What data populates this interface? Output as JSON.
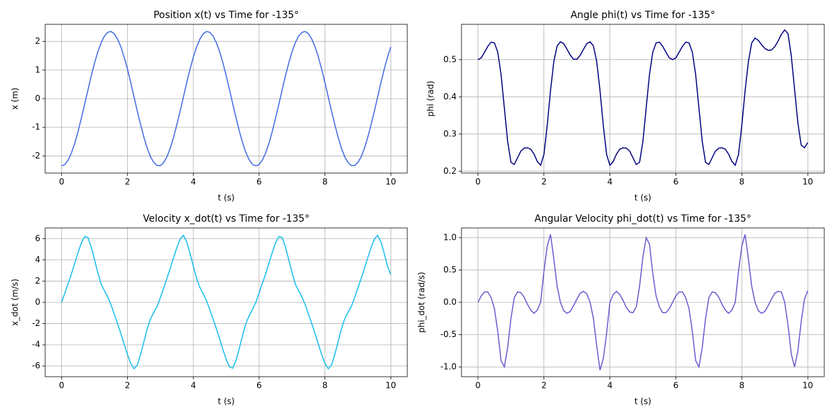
{
  "chart_data": [
    {
      "type": "line",
      "title": "Position x(t) vs Time for -135°",
      "xlabel": "t (s)",
      "ylabel": "x (m)",
      "color": "#4169e1",
      "x": [
        0,
        0.1,
        0.2,
        0.3,
        0.4,
        0.5,
        0.6,
        0.7,
        0.8,
        0.9,
        1,
        1.1,
        1.2,
        1.3,
        1.4,
        1.5,
        1.6,
        1.7,
        1.8,
        1.9,
        2,
        2.1,
        2.2,
        2.3,
        2.4,
        2.5,
        2.6,
        2.7,
        2.8,
        2.9,
        3,
        3.1,
        3.2,
        3.3,
        3.4,
        3.5,
        3.6,
        3.7,
        3.8,
        3.9,
        4,
        4.1,
        4.2,
        4.3,
        4.4,
        4.5,
        4.6,
        4.7,
        4.8,
        4.9,
        5,
        5.1,
        5.2,
        5.3,
        5.4,
        5.5,
        5.6,
        5.7,
        5.8,
        5.9,
        6,
        6.1,
        6.2,
        6.3,
        6.4,
        6.5,
        6.6,
        6.7,
        6.8,
        6.9,
        7,
        7.1,
        7.2,
        7.3,
        7.4,
        7.5,
        7.6,
        7.7,
        7.8,
        7.9,
        8,
        8.1,
        8.2,
        8.3,
        8.4,
        8.5,
        8.6,
        8.7,
        8.8,
        8.9,
        9,
        9.1,
        9.2,
        9.3,
        9.4,
        9.5,
        9.6,
        9.7,
        9.8,
        9.9,
        10
      ],
      "values": [
        -2.35,
        -2.3,
        -2.14,
        -1.89,
        -1.55,
        -1.14,
        -0.68,
        -0.19,
        0.31,
        0.8,
        1.25,
        1.64,
        1.96,
        2.19,
        2.32,
        2.35,
        2.27,
        2.08,
        1.81,
        1.45,
        1.03,
        0.56,
        0.06,
        -0.44,
        -0.91,
        -1.35,
        -1.73,
        -2.03,
        -2.23,
        -2.34,
        -2.34,
        -2.23,
        -2.03,
        -1.73,
        -1.35,
        -0.91,
        -0.44,
        0.06,
        0.56,
        1.03,
        1.45,
        1.81,
        2.08,
        2.27,
        2.35,
        2.32,
        2.19,
        1.96,
        1.64,
        1.25,
        0.8,
        0.31,
        -0.19,
        -0.68,
        -1.14,
        -1.55,
        -1.89,
        -2.14,
        -2.3,
        -2.35,
        -2.3,
        -2.14,
        -1.89,
        -1.55,
        -1.14,
        -0.68,
        -0.19,
        0.31,
        0.8,
        1.25,
        1.64,
        1.96,
        2.19,
        2.32,
        2.35,
        2.27,
        2.08,
        1.81,
        1.45,
        1.03,
        0.56,
        0.06,
        -0.44,
        -0.91,
        -1.35,
        -1.73,
        -2.03,
        -2.23,
        -2.34,
        -2.34,
        -2.23,
        -2.03,
        -1.73,
        -1.35,
        -0.91,
        -0.44,
        0.06,
        0.56,
        1.03,
        1.45,
        1.81
      ],
      "xlim": [
        -0.5,
        10.5
      ],
      "xticks": [
        0,
        2,
        4,
        6,
        8,
        10
      ],
      "ylim": [
        -2.6,
        2.6
      ],
      "yticks": [
        -2,
        -1,
        0,
        1,
        2
      ],
      "grid": true
    },
    {
      "type": "line",
      "title": "Angle phi(t) vs Time for -135°",
      "xlabel": "t (s)",
      "ylabel": "phi (rad)",
      "color": "#000080",
      "x": [
        0,
        0.1,
        0.2,
        0.3,
        0.4,
        0.5,
        0.6,
        0.7,
        0.8,
        0.9,
        1,
        1.1,
        1.2,
        1.3,
        1.4,
        1.5,
        1.6,
        1.7,
        1.8,
        1.9,
        2,
        2.1,
        2.2,
        2.3,
        2.4,
        2.5,
        2.6,
        2.7,
        2.8,
        2.9,
        3,
        3.1,
        3.2,
        3.3,
        3.4,
        3.5,
        3.6,
        3.7,
        3.8,
        3.9,
        4,
        4.1,
        4.2,
        4.3,
        4.4,
        4.5,
        4.6,
        4.7,
        4.8,
        4.9,
        5,
        5.1,
        5.2,
        5.3,
        5.4,
        5.5,
        5.6,
        5.7,
        5.8,
        5.9,
        6,
        6.1,
        6.2,
        6.3,
        6.4,
        6.5,
        6.6,
        6.7,
        6.8,
        6.9,
        7,
        7.1,
        7.2,
        7.3,
        7.4,
        7.5,
        7.6,
        7.7,
        7.8,
        7.9,
        8,
        8.1,
        8.2,
        8.3,
        8.4,
        8.5,
        8.6,
        8.7,
        8.8,
        8.9,
        9,
        9.1,
        9.2,
        9.3,
        9.4,
        9.5,
        9.6,
        9.7,
        9.8,
        9.9,
        10
      ],
      "values": [
        0.5,
        0.505,
        0.52,
        0.536,
        0.547,
        0.545,
        0.52,
        0.46,
        0.37,
        0.28,
        0.224,
        0.218,
        0.236,
        0.254,
        0.262,
        0.263,
        0.259,
        0.246,
        0.226,
        0.216,
        0.245,
        0.323,
        0.417,
        0.495,
        0.537,
        0.548,
        0.543,
        0.528,
        0.512,
        0.501,
        0.501,
        0.512,
        0.528,
        0.543,
        0.548,
        0.537,
        0.495,
        0.417,
        0.323,
        0.245,
        0.216,
        0.226,
        0.246,
        0.259,
        0.263,
        0.262,
        0.254,
        0.236,
        0.218,
        0.224,
        0.28,
        0.37,
        0.46,
        0.52,
        0.545,
        0.547,
        0.536,
        0.52,
        0.505,
        0.5,
        0.505,
        0.52,
        0.536,
        0.547,
        0.545,
        0.52,
        0.46,
        0.37,
        0.28,
        0.224,
        0.218,
        0.236,
        0.254,
        0.262,
        0.263,
        0.259,
        0.246,
        0.226,
        0.216,
        0.245,
        0.323,
        0.417,
        0.495,
        0.545,
        0.558,
        0.552,
        0.54,
        0.53,
        0.525,
        0.526,
        0.535,
        0.55,
        0.568,
        0.58,
        0.57,
        0.51,
        0.42,
        0.33,
        0.27,
        0.263,
        0.277
      ],
      "xlim": [
        -0.5,
        10.5
      ],
      "xticks": [
        0,
        2,
        4,
        6,
        8,
        10
      ],
      "ylim": [
        0.195,
        0.595
      ],
      "yticks": [
        0.2,
        0.3,
        0.4,
        0.5
      ],
      "grid": true
    },
    {
      "type": "line",
      "title": "Velocity x_dot(t) vs Time for -135°",
      "xlabel": "t (s)",
      "ylabel": "x_dot (m/s)",
      "color": "#14bdec",
      "x": [
        0,
        0.1,
        0.2,
        0.3,
        0.4,
        0.5,
        0.6,
        0.7,
        0.8,
        0.9,
        1,
        1.1,
        1.2,
        1.3,
        1.4,
        1.5,
        1.6,
        1.7,
        1.8,
        1.9,
        2,
        2.1,
        2.2,
        2.3,
        2.4,
        2.5,
        2.6,
        2.7,
        2.8,
        2.9,
        3,
        3.1,
        3.2,
        3.3,
        3.4,
        3.5,
        3.6,
        3.7,
        3.8,
        3.9,
        4,
        4.1,
        4.2,
        4.3,
        4.4,
        4.5,
        4.6,
        4.7,
        4.8,
        4.9,
        5,
        5.1,
        5.2,
        5.3,
        5.4,
        5.5,
        5.6,
        5.7,
        5.8,
        5.9,
        6,
        6.1,
        6.2,
        6.3,
        6.4,
        6.5,
        6.6,
        6.7,
        6.8,
        6.9,
        7,
        7.1,
        7.2,
        7.3,
        7.4,
        7.5,
        7.6,
        7.7,
        7.8,
        7.9,
        8,
        8.1,
        8.2,
        8.3,
        8.4,
        8.5,
        8.6,
        8.7,
        8.8,
        8.9,
        9,
        9.1,
        9.2,
        9.3,
        9.4,
        9.5,
        9.6,
        9.7,
        9.8,
        9.9,
        10
      ],
      "values": [
        0,
        0.9,
        1.8,
        2.7,
        3.7,
        4.7,
        5.6,
        6.2,
        6.1,
        5.2,
        4,
        2.8,
        1.7,
        1.1,
        0.5,
        -0.22,
        -1.12,
        -2.02,
        -2.95,
        -3.95,
        -4.92,
        -5.77,
        -6.25,
        -5.9,
        -4.9,
        -3.7,
        -2.5,
        -1.55,
        -0.95,
        -0.4,
        0.45,
        1.35,
        2.25,
        3.2,
        4.2,
        5.15,
        5.95,
        6.3,
        5.7,
        4.6,
        3.4,
        2.25,
        1.4,
        0.8,
        0.17,
        -0.68,
        -1.57,
        -2.47,
        -3.45,
        -4.45,
        -5.37,
        -6.07,
        -6.2,
        -5.45,
        -4.3,
        -3.1,
        -1.97,
        -1.25,
        -0.65,
        0,
        0.9,
        1.8,
        2.7,
        3.7,
        4.7,
        5.6,
        6.2,
        6.1,
        5.2,
        4,
        2.8,
        1.7,
        1.1,
        0.5,
        -0.22,
        -1.12,
        -2.02,
        -2.95,
        -3.95,
        -4.92,
        -5.77,
        -6.25,
        -5.9,
        -4.9,
        -3.7,
        -2.5,
        -1.55,
        -0.95,
        -0.4,
        0.45,
        1.35,
        2.25,
        3.2,
        4.2,
        5.15,
        5.95,
        6.3,
        5.7,
        4.6,
        3.4,
        2.6
      ],
      "xlim": [
        -0.5,
        10.5
      ],
      "xticks": [
        0,
        2,
        4,
        6,
        8,
        10
      ],
      "ylim": [
        -7,
        7
      ],
      "yticks": [
        -6,
        -4,
        -2,
        0,
        2,
        4,
        6
      ],
      "grid": true
    },
    {
      "type": "line",
      "title": "Angular Velocity phi_dot(t) vs Time for -135°",
      "xlabel": "t (s)",
      "ylabel": "phi_dot (rad/s)",
      "color": "#6a5acd",
      "x": [
        0,
        0.1,
        0.2,
        0.3,
        0.4,
        0.5,
        0.6,
        0.7,
        0.8,
        0.9,
        1,
        1.1,
        1.2,
        1.3,
        1.4,
        1.5,
        1.6,
        1.7,
        1.8,
        1.9,
        2,
        2.1,
        2.2,
        2.3,
        2.4,
        2.5,
        2.6,
        2.7,
        2.8,
        2.9,
        3,
        3.1,
        3.2,
        3.3,
        3.4,
        3.5,
        3.6,
        3.7,
        3.8,
        3.9,
        4,
        4.1,
        4.2,
        4.3,
        4.4,
        4.5,
        4.6,
        4.7,
        4.8,
        4.9,
        5,
        5.1,
        5.2,
        5.3,
        5.4,
        5.5,
        5.6,
        5.7,
        5.8,
        5.9,
        6,
        6.1,
        6.2,
        6.3,
        6.4,
        6.5,
        6.6,
        6.7,
        6.8,
        6.9,
        7,
        7.1,
        7.2,
        7.3,
        7.4,
        7.5,
        7.6,
        7.7,
        7.8,
        7.9,
        8,
        8.1,
        8.2,
        8.3,
        8.4,
        8.5,
        8.6,
        8.7,
        8.8,
        8.9,
        9,
        9.1,
        9.2,
        9.3,
        9.4,
        9.5,
        9.6,
        9.7,
        9.8,
        9.9,
        10
      ],
      "values": [
        0,
        0.1,
        0.16,
        0.16,
        0.07,
        -0.1,
        -0.45,
        -0.9,
        -1,
        -0.7,
        -0.25,
        0.07,
        0.16,
        0.15,
        0.08,
        -0.03,
        -0.12,
        -0.17,
        -0.12,
        0,
        0.48,
        0.87,
        1.05,
        0.67,
        0.25,
        0,
        -0.13,
        -0.17,
        -0.14,
        -0.05,
        0.05,
        0.14,
        0.17,
        0.13,
        0,
        -0.25,
        -0.67,
        -1.05,
        -0.87,
        -0.48,
        0,
        0.12,
        0.17,
        0.12,
        0.03,
        -0.08,
        -0.15,
        -0.16,
        -0.07,
        0.25,
        0.7,
        1,
        0.9,
        0.45,
        0.1,
        -0.07,
        -0.16,
        -0.16,
        -0.1,
        0,
        0.1,
        0.16,
        0.16,
        0.07,
        -0.1,
        -0.45,
        -0.9,
        -1,
        -0.7,
        -0.25,
        0.07,
        0.16,
        0.15,
        0.08,
        -0.03,
        -0.12,
        -0.17,
        -0.12,
        0,
        0.48,
        0.87,
        1.05,
        0.67,
        0.25,
        0,
        -0.13,
        -0.17,
        -0.14,
        -0.05,
        0.05,
        0.14,
        0.17,
        0.16,
        0,
        -0.35,
        -0.8,
        -1,
        -0.75,
        -0.3,
        0.05,
        0.18
      ],
      "xlim": [
        -0.5,
        10.5
      ],
      "xticks": [
        0,
        2,
        4,
        6,
        8,
        10
      ],
      "ylim": [
        -1.15,
        1.15
      ],
      "yticks": [
        {
          "value": -1,
          "label": "-1.0"
        },
        {
          "value": -0.5,
          "label": "-0.5"
        },
        {
          "value": 0,
          "label": "0.0"
        },
        {
          "value": 0.5,
          "label": "0.5"
        },
        {
          "value": 1,
          "label": "1.0"
        }
      ],
      "grid": true
    }
  ]
}
